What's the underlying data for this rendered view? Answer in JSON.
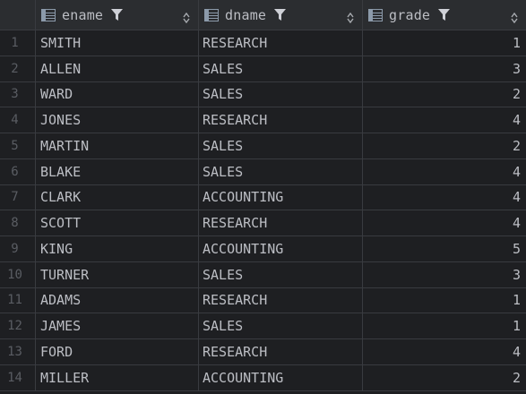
{
  "columns": [
    {
      "name": "ename",
      "icon": "table-column-icon"
    },
    {
      "name": "dname",
      "icon": "table-column-icon"
    },
    {
      "name": "grade",
      "icon": "table-column-icon"
    }
  ],
  "rows": [
    {
      "num": "1",
      "ename": "SMITH",
      "dname": "RESEARCH",
      "grade": "1"
    },
    {
      "num": "2",
      "ename": "ALLEN",
      "dname": "SALES",
      "grade": "3"
    },
    {
      "num": "3",
      "ename": "WARD",
      "dname": "SALES",
      "grade": "2"
    },
    {
      "num": "4",
      "ename": "JONES",
      "dname": "RESEARCH",
      "grade": "4"
    },
    {
      "num": "5",
      "ename": "MARTIN",
      "dname": "SALES",
      "grade": "2"
    },
    {
      "num": "6",
      "ename": "BLAKE",
      "dname": "SALES",
      "grade": "4"
    },
    {
      "num": "7",
      "ename": "CLARK",
      "dname": "ACCOUNTING",
      "grade": "4"
    },
    {
      "num": "8",
      "ename": "SCOTT",
      "dname": "RESEARCH",
      "grade": "4"
    },
    {
      "num": "9",
      "ename": "KING",
      "dname": "ACCOUNTING",
      "grade": "5"
    },
    {
      "num": "10",
      "ename": "TURNER",
      "dname": "SALES",
      "grade": "3"
    },
    {
      "num": "11",
      "ename": "ADAMS",
      "dname": "RESEARCH",
      "grade": "1"
    },
    {
      "num": "12",
      "ename": "JAMES",
      "dname": "SALES",
      "grade": "1"
    },
    {
      "num": "13",
      "ename": "FORD",
      "dname": "RESEARCH",
      "grade": "4"
    },
    {
      "num": "14",
      "ename": "MILLER",
      "dname": "ACCOUNTING",
      "grade": "2"
    }
  ],
  "colors": {
    "background": "#1e1f22",
    "header": "#2b2d30",
    "grid_line": "#393b40",
    "text": "#bcbec4",
    "row_number": "#5a5d63"
  }
}
